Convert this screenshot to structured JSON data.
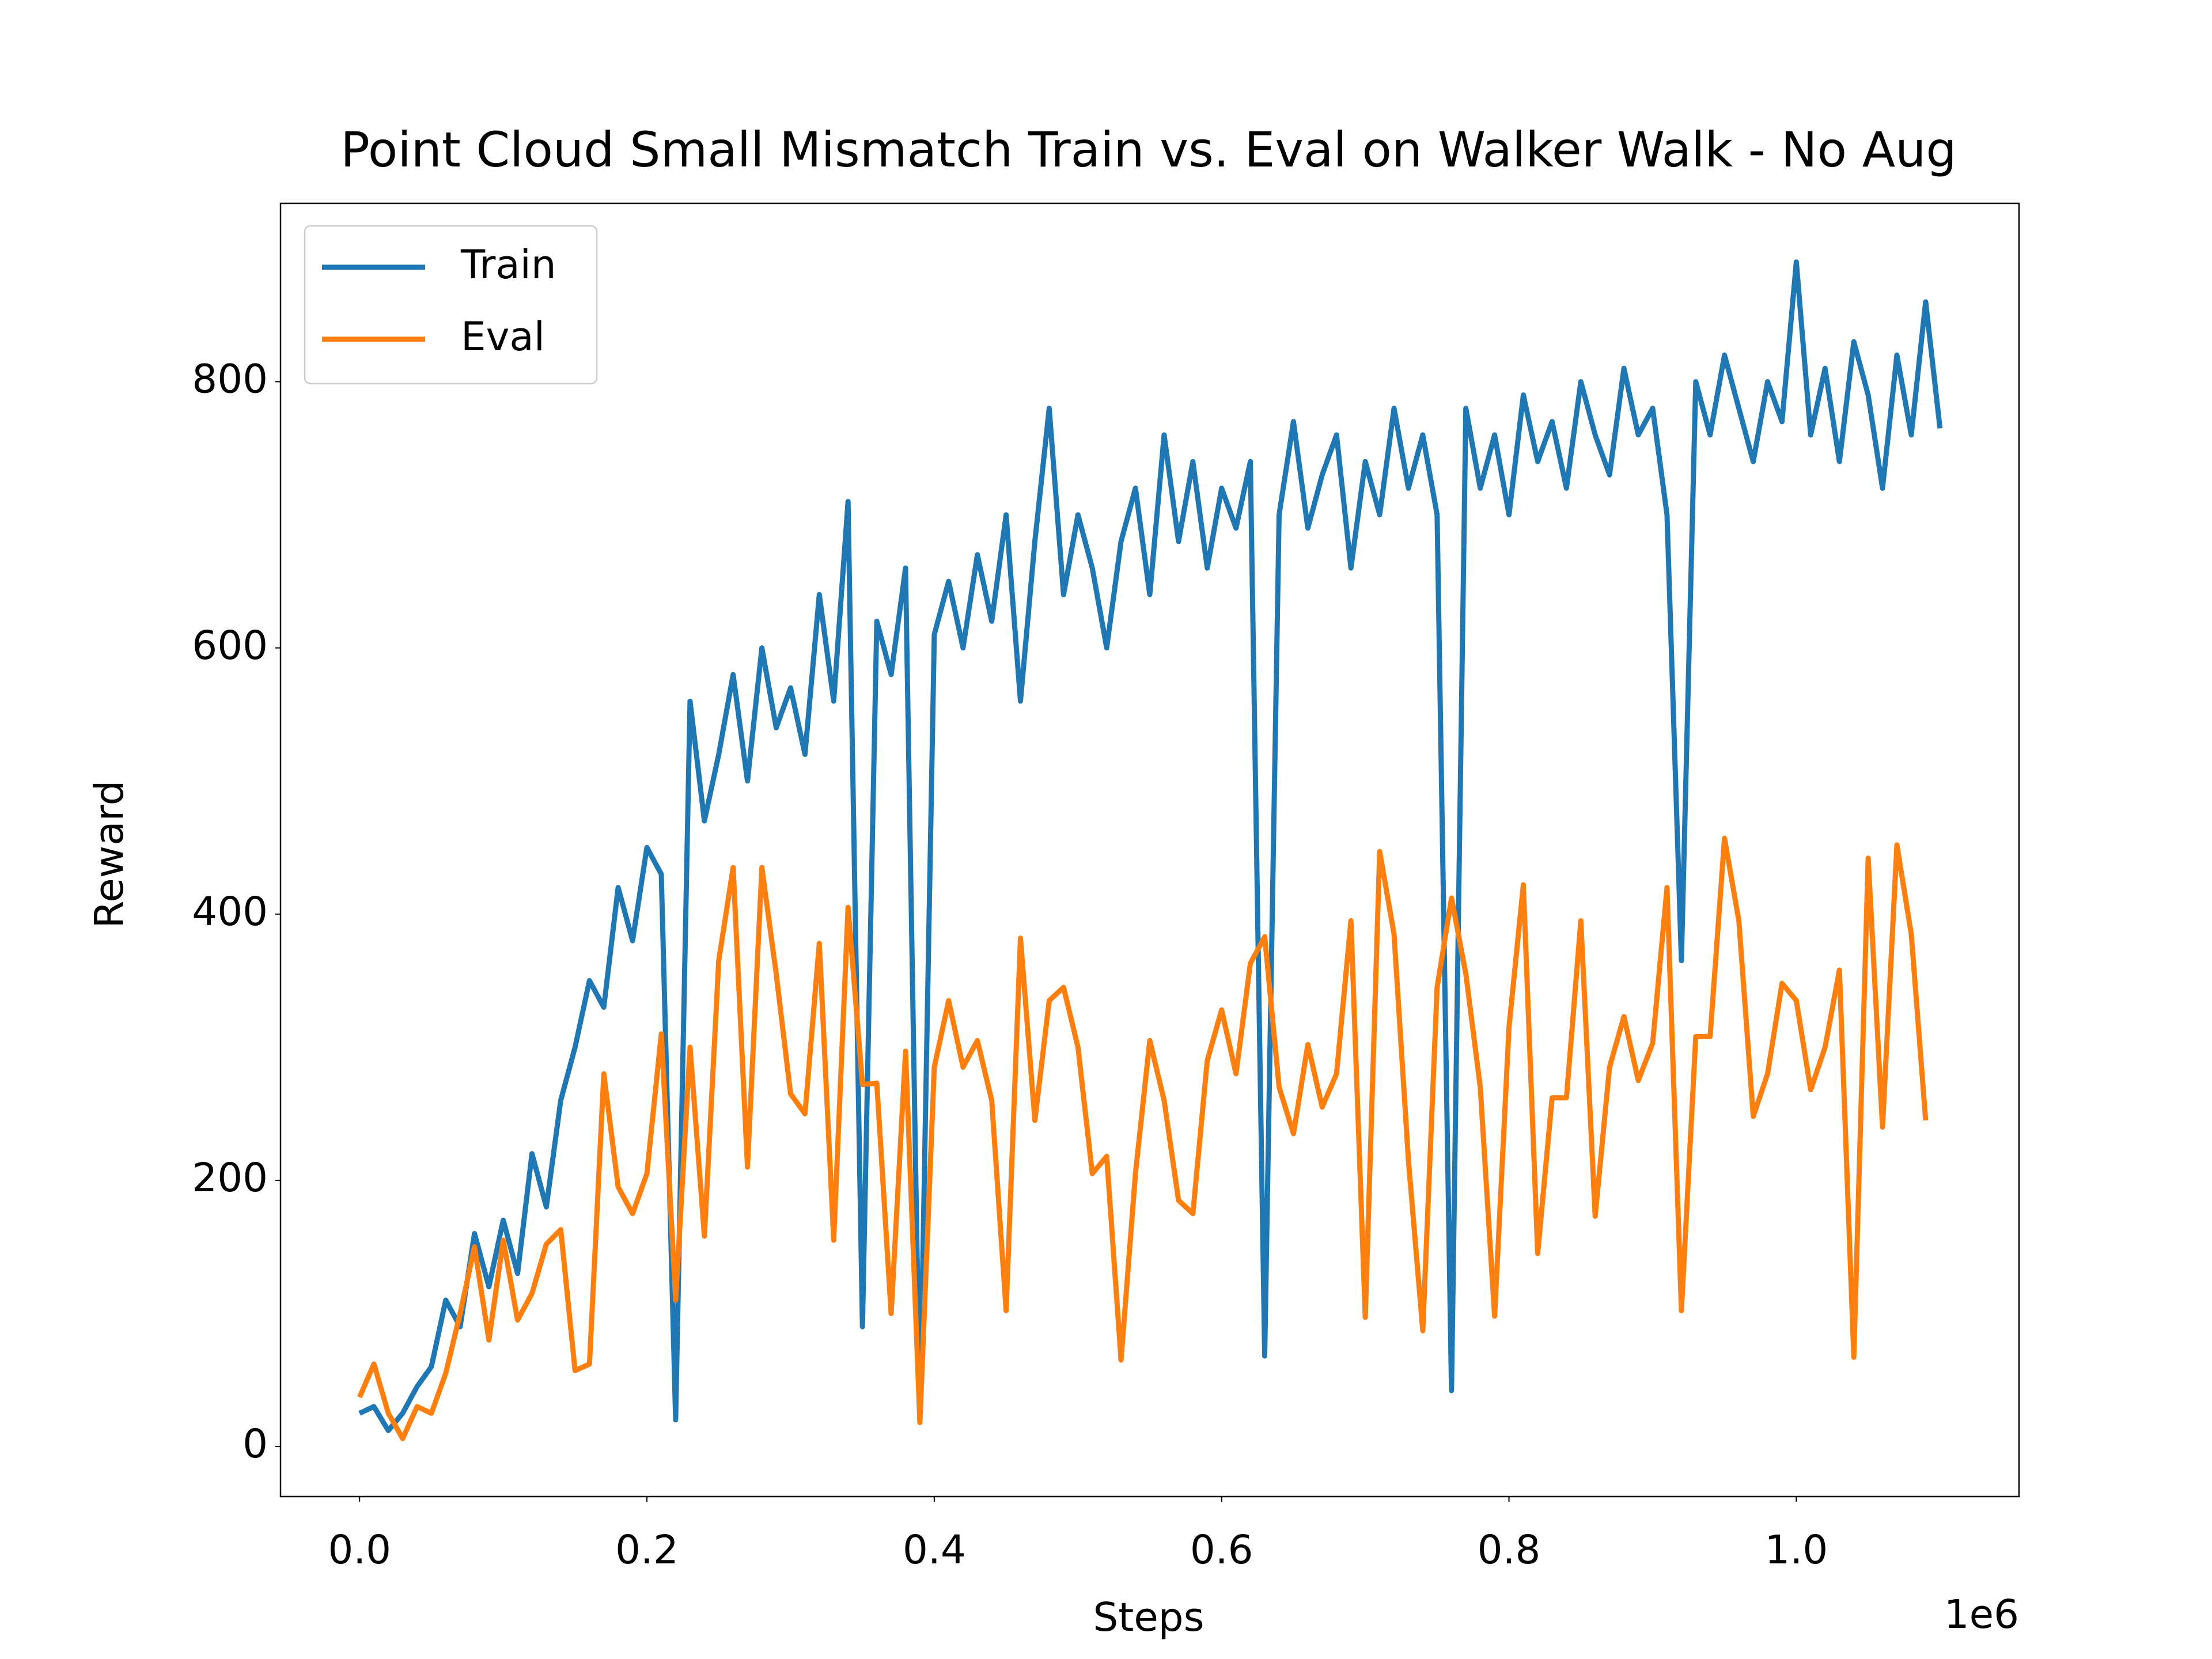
{
  "chart_data": {
    "type": "line",
    "title": "Point Cloud Small Mismatch Train vs. Eval on Walker Walk - No Aug",
    "xlabel": "Steps",
    "ylabel": "Reward",
    "x_offset_label": "1e6",
    "xlim": [
      -55000,
      1155000
    ],
    "ylim": [
      -37.6,
      934
    ],
    "xticks": [
      {
        "value": 0,
        "label": "0.0"
      },
      {
        "value": 200000,
        "label": "0.2"
      },
      {
        "value": 400000,
        "label": "0.4"
      },
      {
        "value": 600000,
        "label": "0.6"
      },
      {
        "value": 800000,
        "label": "0.8"
      },
      {
        "value": 1000000,
        "label": "1.0"
      }
    ],
    "yticks": [
      0,
      200,
      400,
      600,
      800
    ],
    "grid": false,
    "legend": "upper left",
    "series": [
      {
        "name": "Train",
        "color": "#1f77b4",
        "x": [
          0,
          10000,
          20000,
          30000,
          40000,
          50000,
          60000,
          70000,
          80000,
          90000,
          100000,
          110000,
          120000,
          130000,
          140000,
          150000,
          160000,
          170000,
          180000,
          190000,
          200000,
          210000,
          220000,
          230000,
          240000,
          250000,
          260000,
          270000,
          280000,
          290000,
          300000,
          310000,
          320000,
          330000,
          340000,
          350000,
          360000,
          370000,
          380000,
          390000,
          400000,
          410000,
          420000,
          430000,
          440000,
          450000,
          460000,
          470000,
          480000,
          490000,
          500000,
          510000,
          520000,
          530000,
          540000,
          550000,
          560000,
          570000,
          580000,
          590000,
          600000,
          610000,
          620000,
          630000,
          640000,
          650000,
          660000,
          670000,
          680000,
          690000,
          700000,
          710000,
          720000,
          730000,
          740000,
          750000,
          760000,
          770000,
          780000,
          790000,
          800000,
          810000,
          820000,
          830000,
          840000,
          850000,
          860000,
          870000,
          880000,
          890000,
          900000,
          910000,
          920000,
          930000,
          940000,
          950000,
          960000,
          970000,
          980000,
          990000,
          1000000,
          1010000,
          1020000,
          1030000,
          1040000,
          1050000,
          1060000,
          1070000,
          1080000,
          1090000,
          1100000
        ],
        "values": [
          25,
          30,
          12,
          25,
          45,
          60,
          110,
          90,
          160,
          120,
          170,
          130,
          220,
          180,
          260,
          300,
          350,
          330,
          420,
          380,
          450,
          430,
          20,
          560,
          470,
          520,
          580,
          500,
          600,
          540,
          570,
          520,
          640,
          560,
          710,
          90,
          620,
          580,
          660,
          20,
          610,
          650,
          600,
          670,
          620,
          700,
          560,
          680,
          780,
          640,
          700,
          660,
          600,
          680,
          720,
          640,
          760,
          680,
          740,
          660,
          720,
          690,
          740,
          68,
          700,
          770,
          690,
          730,
          760,
          660,
          740,
          700,
          780,
          720,
          760,
          700,
          42,
          780,
          720,
          760,
          700,
          790,
          740,
          770,
          720,
          800,
          760,
          730,
          810,
          760,
          780,
          700,
          365,
          800,
          760,
          820,
          780,
          740,
          800,
          770,
          890,
          760,
          810,
          740,
          830,
          790,
          720,
          820,
          760,
          860,
          765
        ]
      },
      {
        "name": "Eval",
        "color": "#ff7f0e",
        "x": [
          0,
          10000,
          20000,
          30000,
          40000,
          50000,
          60000,
          70000,
          80000,
          90000,
          100000,
          110000,
          120000,
          130000,
          140000,
          150000,
          160000,
          170000,
          180000,
          190000,
          200000,
          210000,
          220000,
          230000,
          240000,
          250000,
          260000,
          270000,
          280000,
          290000,
          300000,
          310000,
          320000,
          330000,
          340000,
          350000,
          360000,
          370000,
          380000,
          390000,
          400000,
          410000,
          420000,
          430000,
          440000,
          450000,
          460000,
          470000,
          480000,
          490000,
          500000,
          510000,
          520000,
          530000,
          540000,
          550000,
          560000,
          570000,
          580000,
          590000,
          600000,
          610000,
          620000,
          630000,
          640000,
          650000,
          660000,
          670000,
          680000,
          690000,
          700000,
          710000,
          720000,
          730000,
          740000,
          750000,
          760000,
          770000,
          780000,
          790000,
          800000,
          810000,
          820000,
          830000,
          840000,
          850000,
          860000,
          870000,
          880000,
          890000,
          900000,
          910000,
          920000,
          930000,
          940000,
          950000,
          960000,
          970000,
          980000,
          990000,
          1000000,
          1010000,
          1020000,
          1030000,
          1040000,
          1050000,
          1060000,
          1070000,
          1080000,
          1090000
        ],
        "values": [
          37,
          62,
          25,
          6,
          30,
          25,
          55,
          100,
          150,
          80,
          155,
          95,
          115,
          152,
          163,
          57,
          62,
          280,
          195,
          175,
          205,
          310,
          110,
          300,
          158,
          365,
          435,
          210,
          435,
          355,
          265,
          250,
          378,
          155,
          405,
          272,
          273,
          100,
          297,
          18,
          285,
          335,
          285,
          305,
          260,
          102,
          382,
          245,
          335,
          345,
          300,
          205,
          218,
          65,
          205,
          305,
          260,
          185,
          175,
          290,
          328,
          280,
          363,
          383,
          270,
          235,
          302,
          255,
          280,
          395,
          97,
          447,
          385,
          215,
          87,
          345,
          412,
          355,
          270,
          98,
          315,
          422,
          145,
          262,
          262,
          395,
          173,
          285,
          323,
          275,
          303,
          420,
          102,
          308,
          308,
          457,
          395,
          248,
          280,
          348,
          335,
          268,
          300,
          358,
          67,
          442,
          240,
          452,
          385,
          245
        ]
      }
    ]
  }
}
